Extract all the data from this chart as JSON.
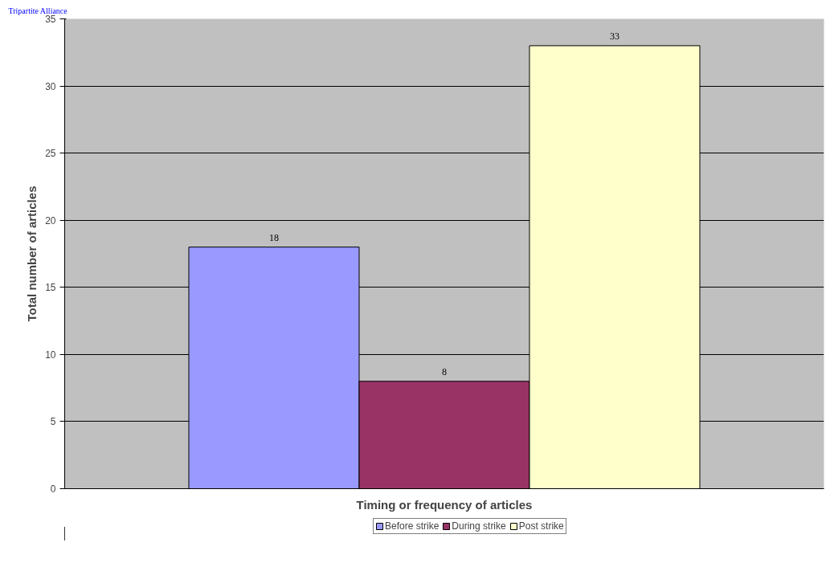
{
  "chart_data": {
    "type": "bar",
    "title": "Tripartite Alliance",
    "xlabel": "Timing or frequency of articles",
    "ylabel": "Total number of articles",
    "categories": [
      null
    ],
    "series": [
      {
        "name": "Before strike",
        "color": "#9999ff",
        "values": [
          18
        ]
      },
      {
        "name": "During strike",
        "color": "#993366",
        "values": [
          8
        ]
      },
      {
        "name": "Post strike",
        "color": "#ffffcc",
        "values": [
          33
        ]
      }
    ],
    "ylim": [
      0,
      35
    ],
    "yticks": [
      0,
      5,
      10,
      15,
      20,
      25,
      30,
      35
    ],
    "grid": "y",
    "legend": "bottom",
    "data_labels": true
  }
}
